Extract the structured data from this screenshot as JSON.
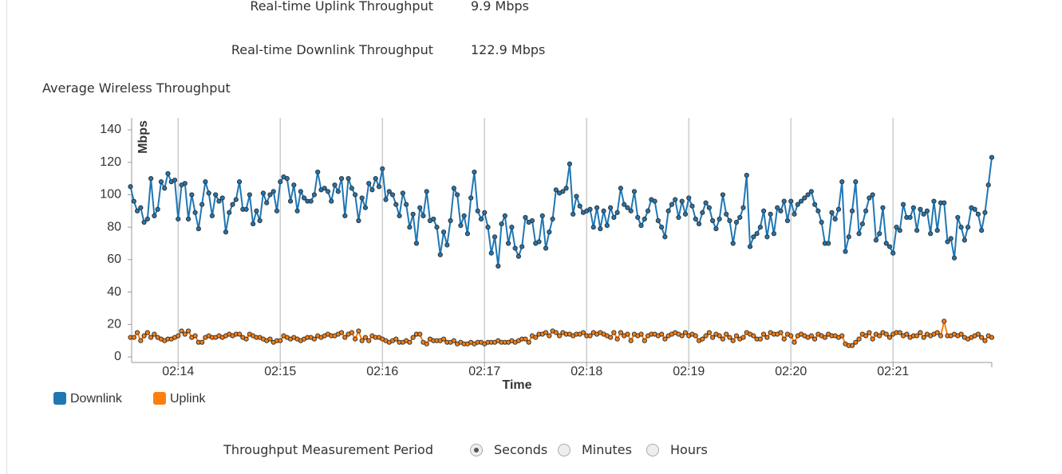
{
  "stats": [
    {
      "label": "Real-time Uplink Throughput",
      "value": "9.9 Mbps"
    },
    {
      "label": "Real-time Downlink Throughput",
      "value": "122.9 Mbps"
    }
  ],
  "section_title": "Average Wireless Throughput",
  "chart_data": {
    "type": "line",
    "ylabel": "Mbps",
    "xlabel": "Time",
    "categories": [
      null,
      null,
      null,
      null,
      null,
      null,
      null,
      null,
      null,
      null,
      null,
      null,
      null,
      null,
      "02:14",
      null,
      null,
      null,
      null,
      null,
      null,
      null,
      null,
      null,
      null,
      null,
      null,
      null,
      null,
      null,
      null,
      null,
      null,
      null,
      null,
      null,
      null,
      null,
      null,
      null,
      null,
      null,
      null,
      null,
      "02:15",
      null,
      null,
      null,
      null,
      null,
      null,
      null,
      null,
      null,
      null,
      null,
      null,
      null,
      null,
      null,
      null,
      null,
      null,
      null,
      null,
      null,
      null,
      null,
      null,
      null,
      null,
      null,
      null,
      null,
      "02:16",
      null,
      null,
      null,
      null,
      null,
      null,
      null,
      null,
      null,
      null,
      null,
      null,
      null,
      null,
      null,
      null,
      null,
      null,
      null,
      null,
      null,
      null,
      null,
      null,
      null,
      null,
      null,
      null,
      null,
      "02:17",
      null,
      null,
      null,
      null,
      null,
      null,
      null,
      null,
      null,
      null,
      null,
      null,
      null,
      null,
      null,
      null,
      null,
      null,
      null,
      null,
      null,
      null,
      null,
      null,
      null,
      null,
      null,
      null,
      null,
      "02:18",
      null,
      null,
      null,
      null,
      null,
      null,
      null,
      null,
      null,
      null,
      null,
      null,
      null,
      null,
      null,
      null,
      null,
      null,
      null,
      null,
      null,
      null,
      null,
      null,
      null,
      null,
      null,
      null,
      null,
      "02:19",
      null,
      null,
      null,
      null,
      null,
      null,
      null,
      null,
      null,
      null,
      null,
      null,
      null,
      null,
      null,
      null,
      null,
      null,
      null,
      null,
      null,
      null,
      null,
      null,
      null,
      null,
      null,
      null,
      null,
      "02:20",
      null,
      null,
      null,
      null,
      null,
      null,
      null,
      null,
      null,
      null,
      null,
      null,
      null,
      null,
      null,
      null,
      null,
      null,
      null,
      null,
      null,
      null,
      null,
      null,
      null,
      null,
      null,
      null,
      null,
      "02:21",
      null,
      null,
      null,
      null,
      null,
      null,
      null,
      null,
      null,
      null,
      null,
      null,
      null,
      null,
      null,
      null,
      null,
      null,
      null,
      null,
      null,
      null,
      null,
      null,
      null,
      null,
      null,
      null,
      null
    ],
    "series": [
      {
        "name": "Downlink",
        "color": "#1f77b4",
        "values": [
          105,
          96,
          90,
          92,
          83,
          85,
          110,
          87,
          91,
          108,
          104,
          113,
          108,
          109,
          85,
          106,
          107,
          85,
          100,
          89,
          79,
          94,
          108,
          101,
          87,
          100,
          96,
          98,
          77,
          89,
          94,
          97,
          108,
          91,
          91,
          100,
          82,
          90,
          84,
          101,
          95,
          100,
          102,
          90,
          108,
          111,
          110,
          96,
          106,
          90,
          102,
          98,
          96,
          96,
          100,
          114,
          103,
          104,
          102,
          96,
          106,
          102,
          110,
          87,
          110,
          104,
          100,
          84,
          98,
          92,
          107,
          103,
          110,
          105,
          116,
          97,
          102,
          100,
          94,
          87,
          101,
          94,
          80,
          88,
          70,
          92,
          87,
          102,
          84,
          85,
          80,
          63,
          77,
          69,
          84,
          104,
          100,
          81,
          87,
          76,
          98,
          114,
          90,
          85,
          89,
          80,
          64,
          74,
          56,
          82,
          87,
          70,
          80,
          67,
          62,
          68,
          86,
          83,
          84,
          70,
          71,
          87,
          67,
          77,
          85,
          103,
          101,
          102,
          104,
          119,
          88,
          99,
          93,
          89,
          90,
          91,
          80,
          92,
          79,
          90,
          81,
          92,
          86,
          89,
          104,
          94,
          92,
          90,
          102,
          86,
          81,
          85,
          90,
          97,
          96,
          84,
          80,
          74,
          90,
          94,
          97,
          86,
          96,
          88,
          98,
          93,
          85,
          82,
          89,
          95,
          92,
          84,
          79,
          85,
          100,
          88,
          84,
          70,
          83,
          86,
          92,
          112,
          68,
          74,
          76,
          80,
          90,
          74,
          88,
          76,
          92,
          90,
          96,
          84,
          96,
          88,
          94,
          96,
          98,
          100,
          102,
          94,
          90,
          83,
          70,
          70,
          89,
          85,
          91,
          108,
          65,
          74,
          90,
          108,
          76,
          82,
          90,
          98,
          100,
          72,
          76,
          92,
          70,
          68,
          64,
          80,
          78,
          94,
          86,
          86,
          92,
          78,
          91,
          88,
          90,
          76,
          96,
          78,
          95,
          95,
          71,
          73,
          61,
          86,
          80,
          72,
          80,
          92,
          91,
          88,
          78,
          89,
          106,
          123
        ]
      },
      {
        "name": "Uplink",
        "color": "#ff7f0e",
        "values": [
          12,
          12,
          15,
          10,
          13,
          15,
          12,
          14,
          12,
          11,
          10,
          11,
          11,
          12,
          13,
          16,
          14,
          16,
          12,
          13,
          9,
          9,
          12,
          13,
          12,
          12,
          13,
          12,
          13,
          14,
          13,
          14,
          14,
          12,
          11,
          14,
          13,
          12,
          12,
          11,
          10,
          11,
          9,
          10,
          10,
          13,
          12,
          11,
          12,
          11,
          10,
          11,
          12,
          12,
          11,
          13,
          12,
          13,
          14,
          13,
          13,
          14,
          15,
          12,
          14,
          15,
          11,
          16,
          10,
          12,
          10,
          13,
          12,
          12,
          11,
          10,
          9,
          10,
          11,
          9,
          9,
          10,
          9,
          12,
          14,
          14,
          9,
          8,
          11,
          10,
          10,
          10,
          11,
          9,
          9,
          10,
          8,
          9,
          8,
          8,
          9,
          8,
          9,
          9,
          8,
          9,
          9,
          9,
          10,
          9,
          9,
          9,
          10,
          9,
          10,
          11,
          11,
          9,
          13,
          12,
          14,
          14,
          15,
          13,
          16,
          15,
          13,
          15,
          14,
          14,
          13,
          14,
          14,
          15,
          13,
          13,
          15,
          14,
          15,
          14,
          13,
          12,
          15,
          11,
          15,
          13,
          14,
          10,
          14,
          13,
          14,
          10,
          13,
          14,
          14,
          13,
          14,
          11,
          13,
          14,
          15,
          14,
          13,
          15,
          13,
          14,
          13,
          10,
          11,
          13,
          15,
          12,
          14,
          13,
          11,
          14,
          12,
          10,
          13,
          11,
          12,
          15,
          14,
          13,
          11,
          11,
          14,
          12,
          15,
          14,
          14,
          15,
          11,
          14,
          13,
          9,
          13,
          14,
          13,
          12,
          13,
          11,
          14,
          13,
          12,
          14,
          13,
          13,
          12,
          13,
          8,
          7,
          7,
          9,
          11,
          14,
          13,
          15,
          11,
          14,
          13,
          15,
          14,
          12,
          14,
          15,
          15,
          13,
          14,
          12,
          13,
          13,
          15,
          12,
          14,
          13,
          14,
          15,
          13,
          22,
          13,
          13,
          14,
          13,
          14,
          12,
          11,
          12,
          13,
          14,
          12,
          10,
          13,
          12
        ]
      }
    ],
    "ylim": [
      0,
      140
    ],
    "yticks": [
      0,
      20,
      40,
      60,
      80,
      100,
      120,
      140
    ],
    "grid": "x"
  },
  "period": {
    "label": "Throughput Measurement Period",
    "options": [
      "Seconds",
      "Minutes",
      "Hours"
    ],
    "selected": 0
  }
}
